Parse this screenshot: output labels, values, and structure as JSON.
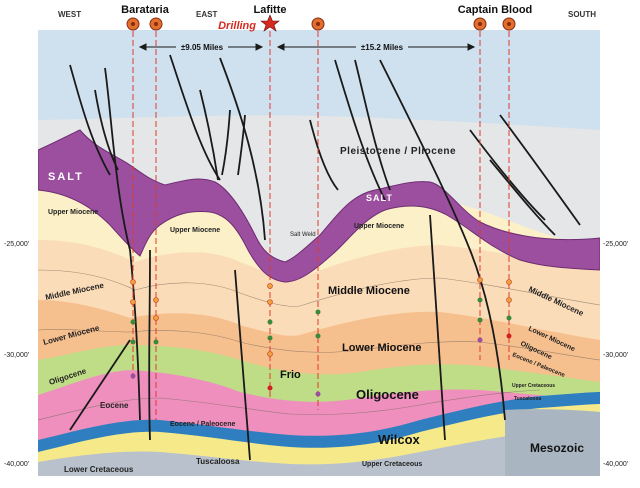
{
  "header": {
    "directions": [
      "WEST",
      "EAST",
      "SOUTH"
    ],
    "wells": [
      "Barataria",
      "Lafitte",
      "Captain Blood"
    ],
    "status": "Drilling",
    "distances": [
      "±9.05 Miles",
      "±15.2 Miles"
    ]
  },
  "depth_labels": {
    "left": [
      "-25,000'",
      "-30,000'",
      "-40,000'"
    ],
    "right": [
      "-25,000'",
      "-30,000'",
      "-40,000'"
    ]
  },
  "layers": {
    "salt": [
      "SALT",
      "SALT"
    ],
    "salt_weld": "Salt Weld",
    "pleistocene": "Pleistocene / Pliocene",
    "upper_miocene": [
      "Upper Miocene",
      "Upper Miocene",
      "Upper Miocene"
    ],
    "middle_miocene": [
      "Middle Miocene",
      "Middle Miocene",
      "Middle Miocene"
    ],
    "lower_miocene": [
      "Lower Miocene",
      "Lower Miocene",
      "Lower Miocene"
    ],
    "oligocene": [
      "Oligocene",
      "Oligocene",
      "Oligocene"
    ],
    "frio": "Frio",
    "eocene": "Eocene",
    "eocene_paleocene": [
      "Eocene / Paleocene",
      "Eocene / Paleocene"
    ],
    "wilcox": "Wilcox",
    "upper_cretaceous": [
      "Upper Cretaceous",
      "Upper Cretaceous"
    ],
    "lower_cretaceous": "Lower Cretaceous",
    "tuscaloosa": [
      "Tuscaloosa",
      "Tuscaloosa"
    ],
    "mesozoic": "Mesozoic"
  },
  "colors": {
    "sky": "#cfe0ee",
    "pleistocene": "#e4e6e8",
    "salt": "#9b4f9e",
    "upper_miocene": "#fbf0c8",
    "middle_miocene": "#fbdcb8",
    "lower_miocene": "#f6bf8e",
    "oligocene": "#bfdc86",
    "eocene": "#ee8fbe",
    "wilcox_blue": "#2f7fc0",
    "cretaceous_yellow": "#f6e98a",
    "lower_cretaceous": "#b9c2cc",
    "mesozoic": "#a9b5c0",
    "well_line": "#e03a2e",
    "well_marker": "#e0702e",
    "drilling_text": "#d42a1f"
  }
}
